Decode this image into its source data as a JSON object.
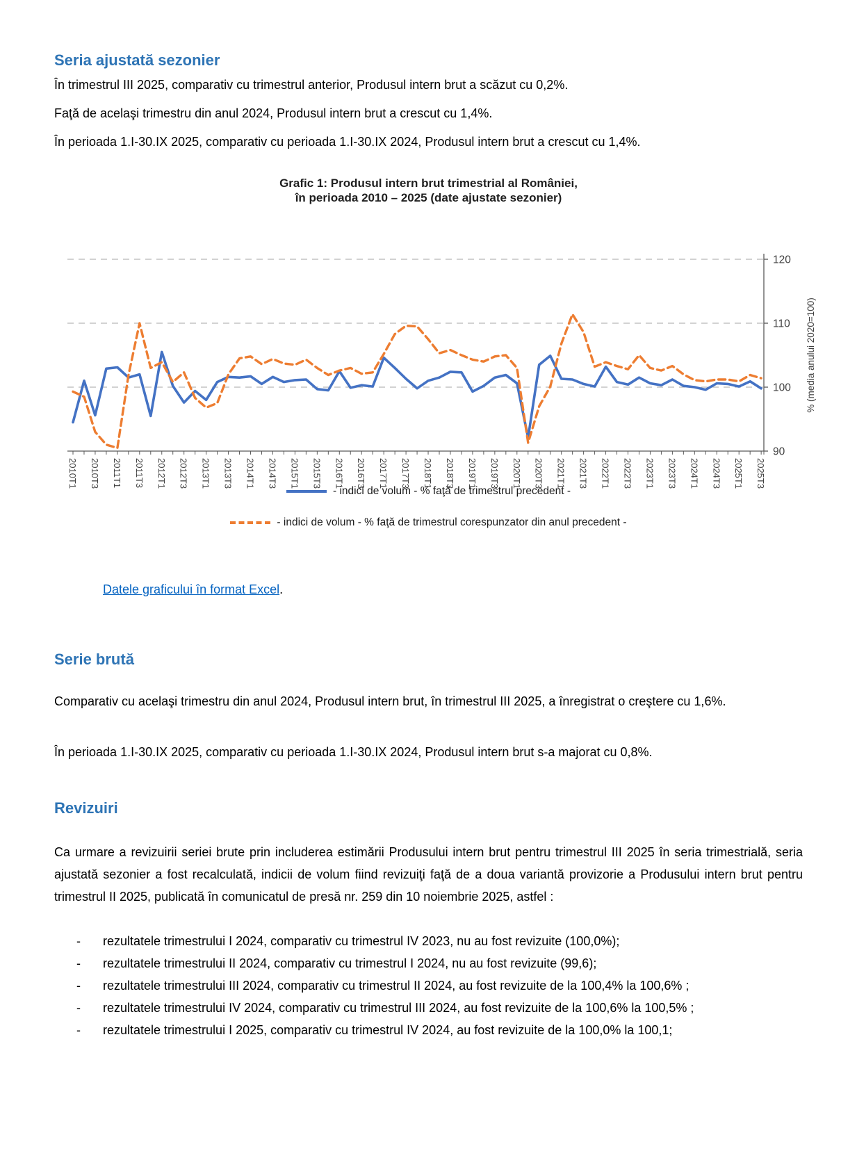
{
  "colors": {
    "heading_blue": "#2E74B5",
    "link_blue": "#0563C1",
    "series_qoq_blue": "#4472C4",
    "series_yoy_orange": "#ED7D31",
    "gridline_gray": "#A6A6A6"
  },
  "section_seasonally_adjusted": {
    "heading": "Seria ajustată sezonier",
    "paragraphs": [
      "În trimestrul III 2025, comparativ cu trimestrul anterior, Produsul intern brut a scăzut cu 0,2%.",
      "Faţă de acelaşi trimestru din anul 2024, Produsul intern brut a crescut cu 1,4%.",
      "În perioada 1.I-30.IX 2025, comparativ cu perioada 1.I-30.IX 2024, Produsul intern brut a crescut cu 1,4%."
    ]
  },
  "chart": {
    "title_line1": "Grafic 1: Produsul intern brut trimestrial al României,",
    "title_line2": "în perioada 2010 – 2025 (date ajustate sezonier)",
    "excel_link_text": "Datele graficului în format Excel",
    "excel_link_suffix": "."
  },
  "chart_data": {
    "type": "line",
    "title": "Grafic 1: Produsul intern brut trimestrial al României, în perioada 2010 – 2025 (date ajustate sezonier)",
    "ylabel": "% (media anului 2020=100)",
    "ylim": [
      90,
      120
    ],
    "yticks": [
      90,
      100,
      110,
      120
    ],
    "grid": "horizontal-dashed",
    "legend_position": "bottom",
    "x_label_every": 2,
    "categories": [
      "2010T1",
      "2010T2",
      "2010T3",
      "2010T4",
      "2011T1",
      "2011T2",
      "2011T3",
      "2011T4",
      "2012T1",
      "2012T2",
      "2012T3",
      "2012T4",
      "2013T1",
      "2013T2",
      "2013T3",
      "2013T4",
      "2014T1",
      "2014T2",
      "2014T3",
      "2014T4",
      "2015T1",
      "2015T2",
      "2015T3",
      "2015T4",
      "2016T1",
      "2016T2",
      "2016T3",
      "2016T4",
      "2017T1",
      "2017T2",
      "2017T3",
      "2017T4",
      "2018T1",
      "2018T2",
      "2018T3",
      "2018T4",
      "2019T1",
      "2019T2",
      "2019T3",
      "2019T4",
      "2020T1",
      "2020T2",
      "2020T3",
      "2020T4",
      "2021T1",
      "2021T2",
      "2021T3",
      "2021T4",
      "2022T1",
      "2022T2",
      "2022T3",
      "2022T4",
      "2023T1",
      "2023T2",
      "2023T3",
      "2023T4",
      "2024T1",
      "2024T2",
      "2024T3",
      "2024T4",
      "2025T1",
      "2025T2",
      "2025T3"
    ],
    "series": [
      {
        "name": "- indici de volum - % faţă de trimestrul precedent -",
        "color": "#4472C4",
        "style": "solid",
        "values": [
          94.5,
          101.0,
          95.6,
          102.9,
          103.1,
          101.5,
          102.0,
          95.5,
          105.5,
          100.2,
          97.6,
          99.4,
          98.0,
          100.8,
          101.6,
          101.5,
          101.7,
          100.5,
          101.6,
          100.8,
          101.1,
          101.2,
          99.7,
          99.5,
          102.5,
          99.9,
          100.3,
          100.1,
          104.6,
          103.0,
          101.3,
          99.8,
          101.0,
          101.5,
          102.4,
          102.3,
          99.3,
          100.2,
          101.5,
          101.9,
          100.6,
          92.1,
          103.5,
          104.9,
          101.3,
          101.2,
          100.5,
          100.1,
          103.2,
          100.8,
          100.4,
          101.5,
          100.6,
          100.3,
          101.2,
          100.2,
          100.0,
          99.6,
          100.6,
          100.5,
          100.1,
          100.9,
          99.8
        ]
      },
      {
        "name": "- indici de volum - % faţă de trimestrul corespunzator din anul precedent -",
        "color": "#ED7D31",
        "style": "dashed",
        "values": [
          99.3,
          98.5,
          93.0,
          91.0,
          90.5,
          101.9,
          110.0,
          103.0,
          103.9,
          100.8,
          102.3,
          98.3,
          96.8,
          97.5,
          102.0,
          104.5,
          104.8,
          103.6,
          104.4,
          103.7,
          103.5,
          104.3,
          103.0,
          101.9,
          102.6,
          103.0,
          102.1,
          102.3,
          105.2,
          108.3,
          109.6,
          109.5,
          107.5,
          105.3,
          105.8,
          105.0,
          104.3,
          104.0,
          104.8,
          105.0,
          103.0,
          91.3,
          97.0,
          100.1,
          106.8,
          111.4,
          108.6,
          103.2,
          103.9,
          103.3,
          102.8,
          105.0,
          103.0,
          102.6,
          103.3,
          102.0,
          101.1,
          100.9,
          101.2,
          101.2,
          100.9,
          101.9,
          101.4
        ]
      }
    ]
  },
  "section_gross": {
    "heading": "Serie brută",
    "paragraphs": [
      "Comparativ cu acelaşi trimestru din anul 2024, Produsul intern brut, în trimestrul III 2025, a înregistrat o creştere cu 1,6%.",
      "În perioada 1.I-30.IX 2025, comparativ cu perioada 1.I-30.IX 2024, Produsul intern brut s-a majorat cu 0,8%."
    ]
  },
  "section_revisions": {
    "heading": "Revizuiri",
    "intro": "Ca urmare a revizuirii seriei brute prin includerea estimării Produsului intern brut pentru trimestrul III 2025  în seria trimestrială, seria ajustată sezonier a fost recalculată, indicii de volum fiind revizuiţi  faţă de a doua variantă provizorie a Produsului intern brut pentru trimestrul II 2025, publicată în comunicatul de presă nr. 259 din 10 noiembrie 2025, astfel :",
    "bullet": "-",
    "items": [
      "rezultatele trimestrului I 2024, comparativ cu trimestrul IV 2023, nu au fost revizuite (100,0%);",
      "rezultatele trimestrului II 2024, comparativ cu trimestrul I 2024, nu au fost revizuite (99,6);",
      "rezultatele trimestrului III 2024, comparativ cu trimestrul II 2024, au fost revizuite de la 100,4% la 100,6% ;",
      "rezultatele trimestrului IV 2024, comparativ cu trimestrul III 2024, au fost revizuite de la 100,6% la 100,5% ;",
      "rezultatele trimestrului I 2025, comparativ cu trimestrul IV 2024, au fost revizuite de la 100,0% la 100,1;"
    ]
  }
}
